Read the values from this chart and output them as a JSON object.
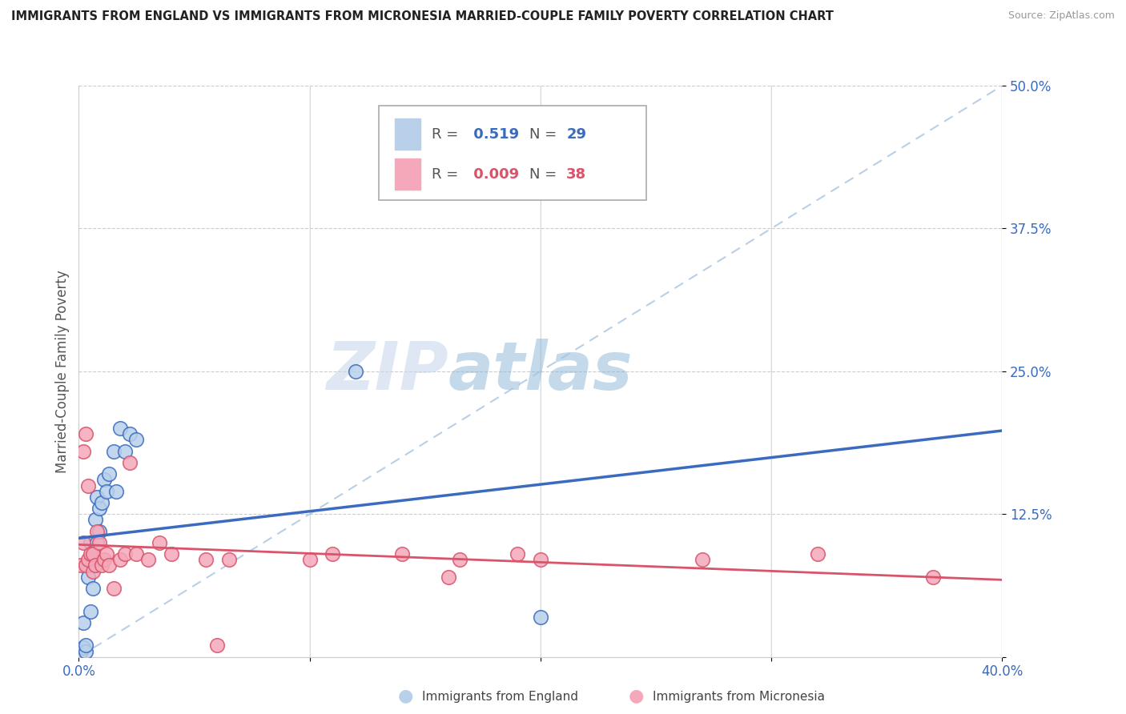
{
  "title": "IMMIGRANTS FROM ENGLAND VS IMMIGRANTS FROM MICRONESIA MARRIED-COUPLE FAMILY POVERTY CORRELATION CHART",
  "source": "Source: ZipAtlas.com",
  "ylabel": "Married-Couple Family Poverty",
  "xlim": [
    0.0,
    0.4
  ],
  "ylim": [
    0.0,
    0.5
  ],
  "yticks": [
    0.0,
    0.125,
    0.25,
    0.375,
    0.5
  ],
  "ytick_labels": [
    "",
    "12.5%",
    "25.0%",
    "37.5%",
    "50.0%"
  ],
  "xticks": [
    0.0,
    0.1,
    0.2,
    0.3,
    0.4
  ],
  "xtick_labels": [
    "0.0%",
    "",
    "",
    "",
    "40.0%"
  ],
  "england_R": 0.519,
  "england_N": 29,
  "micronesia_R": 0.009,
  "micronesia_N": 38,
  "england_color": "#b8d0ea",
  "micronesia_color": "#f5a8ba",
  "england_line_color": "#3a6bbf",
  "micronesia_line_color": "#d9536a",
  "background_color": "#ffffff",
  "grid_color": "#cccccc",
  "england_scatter_x": [
    0.001,
    0.002,
    0.002,
    0.003,
    0.003,
    0.004,
    0.004,
    0.005,
    0.005,
    0.006,
    0.006,
    0.007,
    0.007,
    0.008,
    0.008,
    0.009,
    0.009,
    0.01,
    0.011,
    0.012,
    0.013,
    0.015,
    0.016,
    0.018,
    0.02,
    0.022,
    0.025,
    0.12,
    0.2
  ],
  "england_scatter_y": [
    0.005,
    0.008,
    0.03,
    0.005,
    0.01,
    0.07,
    0.08,
    0.04,
    0.1,
    0.09,
    0.06,
    0.08,
    0.12,
    0.1,
    0.14,
    0.11,
    0.13,
    0.135,
    0.155,
    0.145,
    0.16,
    0.18,
    0.145,
    0.2,
    0.18,
    0.195,
    0.19,
    0.25,
    0.035
  ],
  "micronesia_scatter_x": [
    0.001,
    0.002,
    0.002,
    0.003,
    0.003,
    0.004,
    0.004,
    0.005,
    0.006,
    0.006,
    0.007,
    0.008,
    0.009,
    0.01,
    0.011,
    0.012,
    0.013,
    0.015,
    0.018,
    0.02,
    0.022,
    0.025,
    0.03,
    0.035,
    0.04,
    0.055,
    0.06,
    0.065,
    0.1,
    0.11,
    0.14,
    0.16,
    0.165,
    0.19,
    0.2,
    0.27,
    0.32,
    0.37
  ],
  "micronesia_scatter_y": [
    0.08,
    0.1,
    0.18,
    0.195,
    0.08,
    0.15,
    0.085,
    0.09,
    0.075,
    0.09,
    0.08,
    0.11,
    0.1,
    0.08,
    0.085,
    0.09,
    0.08,
    0.06,
    0.085,
    0.09,
    0.17,
    0.09,
    0.085,
    0.1,
    0.09,
    0.085,
    0.01,
    0.085,
    0.085,
    0.09,
    0.09,
    0.07,
    0.085,
    0.09,
    0.085,
    0.085,
    0.09,
    0.07
  ],
  "watermark_zip": "ZIP",
  "watermark_atlas": "atlas",
  "legend_label_england": "Immigrants from England",
  "legend_label_micronesia": "Immigrants from Micronesia"
}
